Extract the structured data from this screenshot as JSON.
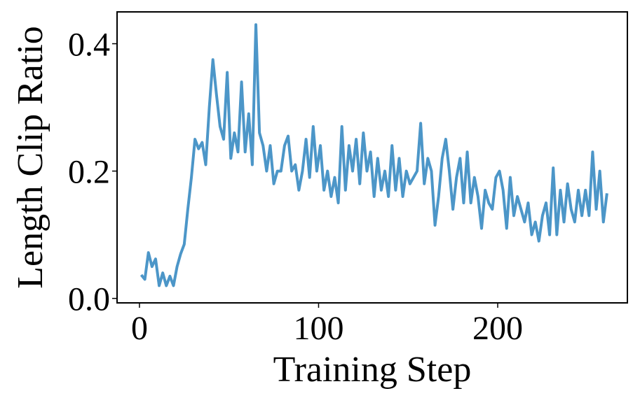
{
  "chart_data": {
    "type": "line",
    "xlabel": "Training Step",
    "ylabel": "Length Clip Ratio",
    "x": [
      1,
      3,
      5,
      7,
      9,
      11,
      13,
      15,
      17,
      19,
      21,
      23,
      25,
      27,
      29,
      31,
      33,
      35,
      37,
      39,
      41,
      43,
      45,
      47,
      49,
      51,
      53,
      55,
      57,
      59,
      61,
      63,
      65,
      67,
      69,
      71,
      73,
      75,
      77,
      79,
      81,
      83,
      85,
      87,
      89,
      91,
      93,
      95,
      97,
      99,
      101,
      103,
      105,
      107,
      109,
      111,
      113,
      115,
      117,
      119,
      121,
      123,
      125,
      127,
      129,
      131,
      133,
      135,
      137,
      139,
      141,
      143,
      145,
      147,
      149,
      151,
      153,
      155,
      157,
      159,
      161,
      163,
      165,
      167,
      169,
      171,
      173,
      175,
      177,
      179,
      181,
      183,
      185,
      187,
      189,
      191,
      193,
      195,
      197,
      199,
      201,
      203,
      205,
      207,
      209,
      211,
      213,
      215,
      217,
      219,
      221,
      223,
      225,
      227,
      229,
      231,
      233,
      235,
      237,
      239,
      241,
      243,
      245,
      247,
      249,
      251,
      253,
      255,
      257,
      259,
      261
    ],
    "series": [
      {
        "color": "#4c96c8",
        "values": [
          0.037,
          0.03,
          0.072,
          0.05,
          0.062,
          0.02,
          0.04,
          0.02,
          0.035,
          0.02,
          0.05,
          0.07,
          0.085,
          0.14,
          0.19,
          0.25,
          0.235,
          0.245,
          0.21,
          0.3,
          0.375,
          0.32,
          0.27,
          0.25,
          0.355,
          0.22,
          0.26,
          0.23,
          0.34,
          0.23,
          0.29,
          0.21,
          0.43,
          0.26,
          0.24,
          0.2,
          0.24,
          0.18,
          0.2,
          0.2,
          0.24,
          0.255,
          0.2,
          0.21,
          0.17,
          0.2,
          0.25,
          0.19,
          0.27,
          0.2,
          0.24,
          0.17,
          0.2,
          0.16,
          0.19,
          0.15,
          0.27,
          0.17,
          0.24,
          0.2,
          0.25,
          0.18,
          0.26,
          0.2,
          0.23,
          0.16,
          0.22,
          0.17,
          0.2,
          0.16,
          0.24,
          0.17,
          0.22,
          0.16,
          0.2,
          0.18,
          0.19,
          0.2,
          0.275,
          0.18,
          0.22,
          0.2,
          0.115,
          0.16,
          0.22,
          0.25,
          0.2,
          0.14,
          0.19,
          0.22,
          0.15,
          0.23,
          0.15,
          0.19,
          0.16,
          0.11,
          0.17,
          0.15,
          0.14,
          0.19,
          0.2,
          0.17,
          0.11,
          0.19,
          0.13,
          0.16,
          0.14,
          0.12,
          0.15,
          0.1,
          0.12,
          0.09,
          0.13,
          0.15,
          0.1,
          0.205,
          0.1,
          0.17,
          0.12,
          0.18,
          0.14,
          0.12,
          0.17,
          0.13,
          0.17,
          0.13,
          0.23,
          0.14,
          0.2,
          0.12,
          0.165
        ]
      }
    ],
    "xlim": [
      -12.5,
      272.4
    ],
    "ylim": [
      -0.007,
      0.45
    ],
    "xticks": [
      0,
      100,
      200
    ],
    "yticks": [
      {
        "value": 0,
        "label": "0.0"
      },
      0.2,
      0.4
    ]
  }
}
